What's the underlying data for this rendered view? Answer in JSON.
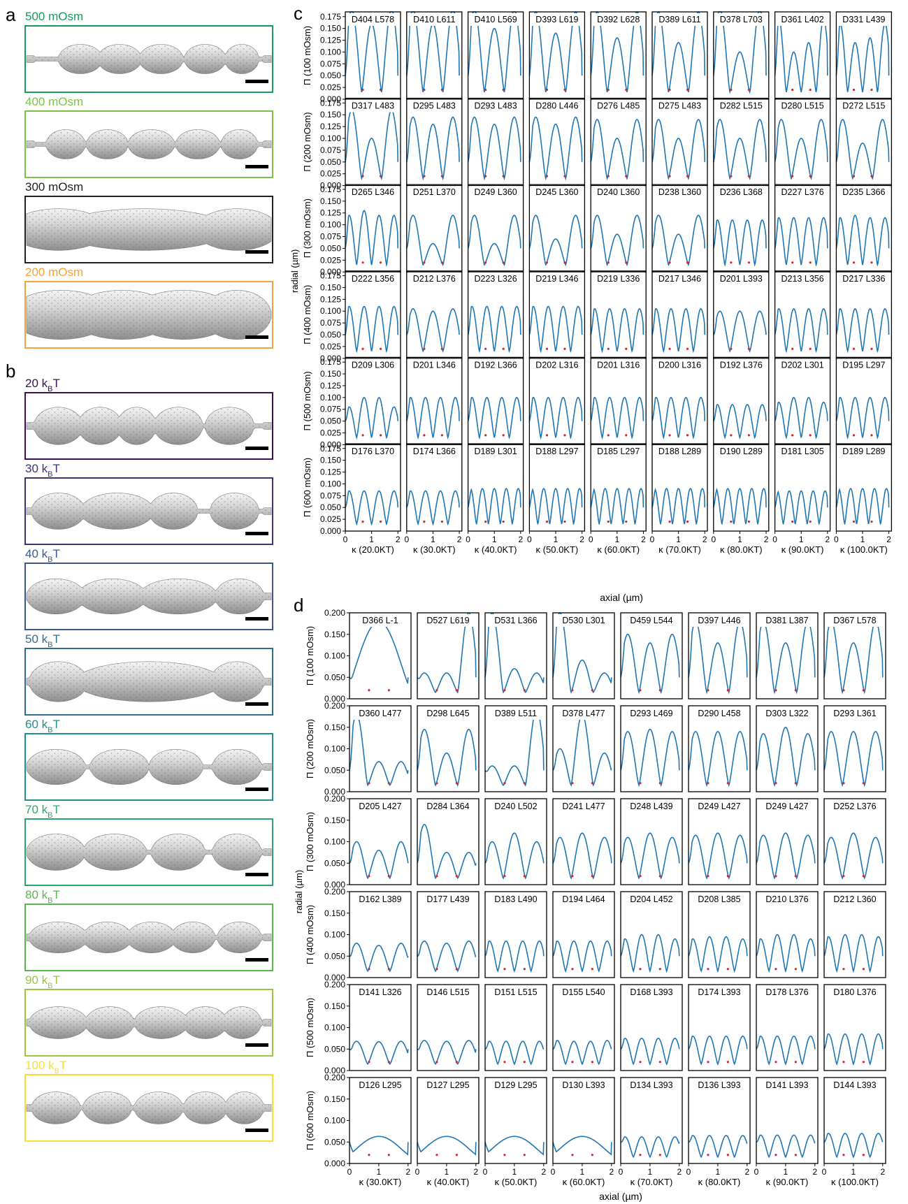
{
  "panels": {
    "a": {
      "letter": "a",
      "items": [
        {
          "label": "500 mOsm",
          "color": "#1a9b5b"
        },
        {
          "label": "400 mOsm",
          "color": "#7dc248"
        },
        {
          "label": "300 mOsm",
          "color": "#222222"
        },
        {
          "label": "200 mOsm",
          "color": "#f2a33c"
        }
      ]
    },
    "b": {
      "letter": "b",
      "unit": "T",
      "items": [
        {
          "num": "20",
          "color": "#3b1056"
        },
        {
          "num": "30",
          "color": "#44307a"
        },
        {
          "num": "40",
          "color": "#3a5890"
        },
        {
          "num": "50",
          "color": "#2c6f8e"
        },
        {
          "num": "60",
          "color": "#21908c"
        },
        {
          "num": "70",
          "color": "#2aa76d"
        },
        {
          "num": "80",
          "color": "#59b84c"
        },
        {
          "num": "90",
          "color": "#9cc53a"
        },
        {
          "num": "100",
          "color": "#f5e033"
        }
      ]
    }
  },
  "chart_data": [
    {
      "type": "line",
      "panel": "c",
      "ylabel": "radial (µm)",
      "xlabel": "axial (µm)",
      "ylim": [
        0,
        0.185
      ],
      "xlim": [
        0,
        2.1
      ],
      "yticks": [
        "0.000",
        "0.025",
        "0.050",
        "0.075",
        "0.100",
        "0.125",
        "0.150",
        "0.175"
      ],
      "xticks": [
        "0",
        "1",
        "2"
      ],
      "row_labels": [
        "Π (100 mOsm)",
        "Π (200 mOsm)",
        "Π (300 mOsm)",
        "Π (400 mOsm)",
        "Π (500 mOsm)",
        "Π (600 mOsm)"
      ],
      "col_labels": [
        "κ (20.0KT)",
        "κ (30.0KT)",
        "κ (40.0KT)",
        "κ (50.0KT)",
        "κ (60.0KT)",
        "κ (70.0KT)",
        "κ (80.0KT)",
        "κ (90.0KT)",
        "κ (100.0KT)"
      ],
      "cell_labels": [
        [
          "D404 L578",
          "D410 L611",
          "D410 L569",
          "D393 L619",
          "D392 L628",
          "D389 L611",
          "D378 L703",
          "D361 L402",
          "D331 L439"
        ],
        [
          "D317 L483",
          "D295 L483",
          "D293 L483",
          "D280 L446",
          "D276 L485",
          "D275 L483",
          "D282 L515",
          "D280 L515",
          "D272 L515"
        ],
        [
          "D265 L346",
          "D251 L370",
          "D249 L360",
          "D245 L360",
          "D240 L360",
          "D238 L360",
          "D236 L368",
          "D227 L376",
          "D235 L366"
        ],
        [
          "D222 L356",
          "D212 L376",
          "D223 L326",
          "D219 L346",
          "D219 L336",
          "D217 L346",
          "D201 L393",
          "D213 L356",
          "D217 L336"
        ],
        [
          "D209 L306",
          "D201 L346",
          "D192 L366",
          "D202 L316",
          "D201 L316",
          "D200 L316",
          "D192 L376",
          "D202 L301",
          "D195 L297"
        ],
        [
          "D176 L370",
          "D174 L366",
          "D189 L301",
          "D188 L297",
          "D185 L297",
          "D188 L289",
          "D190 L289",
          "D181 L305",
          "D189 L289"
        ]
      ],
      "cell_peaks": [
        [
          [
            0.19,
            0.16,
            0.19
          ],
          [
            0.19,
            0.16,
            0.19
          ],
          [
            0.19,
            0.15,
            0.19
          ],
          [
            0.185,
            0.14,
            0.185
          ],
          [
            0.185,
            0.13,
            0.185
          ],
          [
            0.185,
            0.12,
            0.185
          ],
          [
            0.19,
            0.1,
            0.19
          ],
          [
            0.17,
            0.1,
            0.12,
            0.17
          ],
          [
            0.16,
            0.12,
            0.13,
            0.16
          ]
        ],
        [
          [
            0.16,
            0.1,
            0.16
          ],
          [
            0.145,
            0.13,
            0.145
          ],
          [
            0.145,
            0.13,
            0.145
          ],
          [
            0.145,
            0.13,
            0.145
          ],
          [
            0.14,
            0.1,
            0.14
          ],
          [
            0.14,
            0.1,
            0.14
          ],
          [
            0.14,
            0.1,
            0.14
          ],
          [
            0.14,
            0.1,
            0.14
          ],
          [
            0.14,
            0.09,
            0.14
          ]
        ],
        [
          [
            0.12,
            0.13,
            0.12,
            0.12
          ],
          [
            0.12,
            0.06,
            0.12
          ],
          [
            0.12,
            0.06,
            0.12
          ],
          [
            0.12,
            0.07,
            0.12
          ],
          [
            0.12,
            0.08,
            0.12
          ],
          [
            0.12,
            0.08,
            0.12
          ],
          [
            0.11,
            0.11,
            0.11,
            0.11
          ],
          [
            0.115,
            0.115,
            0.115,
            0.115
          ],
          [
            0.115,
            0.12,
            0.115,
            0.115
          ]
        ],
        [
          [
            0.11,
            0.11,
            0.11,
            0.11
          ],
          [
            0.105,
            0.1,
            0.105
          ],
          [
            0.11,
            0.11,
            0.11,
            0.11
          ],
          [
            0.11,
            0.11,
            0.11,
            0.11
          ],
          [
            0.105,
            0.105,
            0.105,
            0.105
          ],
          [
            0.105,
            0.105,
            0.105,
            0.105
          ],
          [
            0.1,
            0.1,
            0.1
          ],
          [
            0.105,
            0.105,
            0.105,
            0.105
          ],
          [
            0.105,
            0.105,
            0.105,
            0.105
          ]
        ],
        [
          [
            0.08,
            0.1,
            0.1,
            0.08
          ],
          [
            0.1,
            0.1,
            0.1,
            0.1
          ],
          [
            0.1,
            0.1,
            0.1,
            0.1
          ],
          [
            0.1,
            0.1,
            0.1,
            0.1
          ],
          [
            0.1,
            0.1,
            0.1,
            0.1
          ],
          [
            0.1,
            0.1,
            0.1,
            0.1
          ],
          [
            0.085,
            0.085,
            0.085,
            0.085
          ],
          [
            0.09,
            0.1,
            0.1,
            0.09
          ],
          [
            0.1,
            0.1,
            0.1,
            0.1
          ]
        ],
        [
          [
            0.085,
            0.085,
            0.085,
            0.085
          ],
          [
            0.085,
            0.085,
            0.085,
            0.085
          ],
          [
            0.09,
            0.09,
            0.09,
            0.09,
            0.09
          ],
          [
            0.09,
            0.09,
            0.09,
            0.09,
            0.09
          ],
          [
            0.09,
            0.09,
            0.09,
            0.09,
            0.09
          ],
          [
            0.09,
            0.09,
            0.09,
            0.09,
            0.09
          ],
          [
            0.09,
            0.09,
            0.09,
            0.09,
            0.09
          ],
          [
            0.085,
            0.085,
            0.085,
            0.085,
            0.085
          ],
          [
            0.09,
            0.09,
            0.09,
            0.09,
            0.09
          ]
        ]
      ]
    },
    {
      "type": "line",
      "panel": "d",
      "ylabel": "radial (µm)",
      "xlabel": "axial (µm)",
      "ylim": [
        0,
        0.2
      ],
      "xlim": [
        0,
        2.1
      ],
      "yticks": [
        "0.000",
        "0.050",
        "0.100",
        "0.150",
        "0.200"
      ],
      "xticks": [
        "0",
        "1",
        "2"
      ],
      "row_labels": [
        "Π (100 mOsm)",
        "Π (200 mOsm)",
        "Π (300 mOsm)",
        "Π (400 mOsm)",
        "Π (500 mOsm)",
        "Π (600 mOsm)"
      ],
      "col_labels": [
        "κ (30.0KT)",
        "κ (40.0KT)",
        "κ (50.0KT)",
        "κ (60.0KT)",
        "κ (70.0KT)",
        "κ (80.0KT)",
        "κ (90.0KT)",
        "κ (100.0KT)"
      ],
      "cell_labels": [
        [
          "D366 L-1",
          "D527 L619",
          "D531 L366",
          "D530 L301",
          "D459 L544",
          "D397 L446",
          "D381 L387",
          "D367 L578"
        ],
        [
          "D360 L477",
          "D298 L645",
          "D389 L511",
          "D378 L477",
          "D293 L469",
          "D290 L458",
          "D303 L322",
          "D293 L361"
        ],
        [
          "D205 L427",
          "D284 L364",
          "D240 L502",
          "D241 L477",
          "D248 L439",
          "D249 L427",
          "D249 L427",
          "D252 L376"
        ],
        [
          "D162 L389",
          "D177 L439",
          "D183 L490",
          "D194 L464",
          "D204 L452",
          "D208 L385",
          "D210 L376",
          "D212 L360"
        ],
        [
          "D141 L326",
          "D146 L515",
          "D151 L515",
          "D155 L540",
          "D168 L393",
          "D174 L393",
          "D178 L376",
          "D180 L376"
        ],
        [
          "D126 L295",
          "D127 L295",
          "D129 L295",
          "D130 L393",
          "D134 L393",
          "D136 L393",
          "D141 L393",
          "D144 L393"
        ]
      ],
      "cell_peaks": [
        [
          [
            0.18
          ],
          [
            0.06,
            0.06,
            0.2
          ],
          [
            0.2,
            0.07,
            0.06
          ],
          [
            0.2,
            0.09,
            0.06
          ],
          [
            0.15,
            0.13,
            0.15
          ],
          [
            0.18,
            0.13,
            0.18
          ],
          [
            0.18,
            0.13,
            0.18
          ],
          [
            0.18,
            0.13,
            0.18
          ]
        ],
        [
          [
            0.18,
            0.07,
            0.07
          ],
          [
            0.145,
            0.09,
            0.145
          ],
          [
            0.06,
            0.06,
            0.19
          ],
          [
            0.1,
            0.18,
            0.09
          ],
          [
            0.14,
            0.145,
            0.14
          ],
          [
            0.14,
            0.14,
            0.14
          ],
          [
            0.135,
            0.15,
            0.135
          ],
          [
            0.14,
            0.14,
            0.14
          ]
        ],
        [
          [
            0.1,
            0.08,
            0.1
          ],
          [
            0.14,
            0.075,
            0.075
          ],
          [
            0.1,
            0.12,
            0.1
          ],
          [
            0.11,
            0.12,
            0.11
          ],
          [
            0.11,
            0.12,
            0.11
          ],
          [
            0.115,
            0.12,
            0.115
          ],
          [
            0.115,
            0.12,
            0.115
          ],
          [
            0.11,
            0.12,
            0.11
          ]
        ],
        [
          [
            0.08,
            0.075,
            0.08
          ],
          [
            0.085,
            0.08,
            0.085
          ],
          [
            0.085,
            0.085,
            0.085,
            0.085
          ],
          [
            0.085,
            0.085,
            0.085,
            0.085
          ],
          [
            0.09,
            0.1,
            0.1,
            0.09
          ],
          [
            0.09,
            0.095,
            0.095,
            0.09
          ],
          [
            0.09,
            0.1,
            0.1,
            0.09
          ],
          [
            0.095,
            0.1,
            0.1,
            0.095
          ]
        ],
        [
          [
            0.068,
            0.067,
            0.068
          ],
          [
            0.07,
            0.068,
            0.07
          ],
          [
            0.068,
            0.068,
            0.068,
            0.068
          ],
          [
            0.07,
            0.068,
            0.068,
            0.07
          ],
          [
            0.075,
            0.075,
            0.075,
            0.075
          ],
          [
            0.08,
            0.08,
            0.08,
            0.08
          ],
          [
            0.08,
            0.08,
            0.08,
            0.08
          ],
          [
            0.085,
            0.085,
            0.085,
            0.085
          ]
        ],
        [
          [
            0.063
          ],
          [
            0.063
          ],
          [
            0.063
          ],
          [
            0.063
          ],
          [
            0.062,
            0.062,
            0.062,
            0.062
          ],
          [
            0.065,
            0.065,
            0.065,
            0.065
          ],
          [
            0.066,
            0.066,
            0.066,
            0.066
          ],
          [
            0.07,
            0.07,
            0.07,
            0.07
          ]
        ]
      ]
    }
  ]
}
